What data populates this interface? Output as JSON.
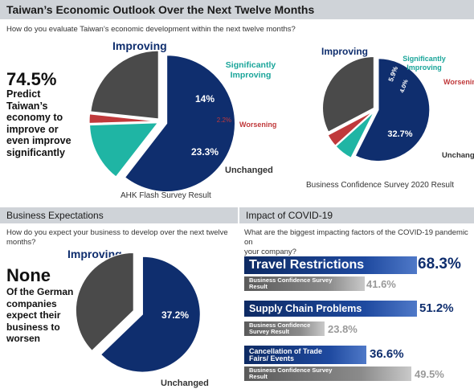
{
  "header": {
    "title": "Taiwan’s Economic Outlook Over the Next Twelve Months"
  },
  "outlook": {
    "question": "How do you evaluate Taiwan’s economic development within the next  twelve months?",
    "stat_value": "74.5%",
    "stat_text_lines": [
      "Predict",
      "Taiwan’s",
      "economy to",
      "improve or",
      "even improve",
      "significantly"
    ],
    "pie1_caption": "AHK Flash Survey Result",
    "pie2_caption": "Business Confidence Survey 2020 Result"
  },
  "expectations": {
    "title": "Business Expectations",
    "question_lines": [
      "How do you expect your business to develop over the next twelve",
      "months?"
    ],
    "stat_value": "None",
    "stat_text_lines": [
      "Of the German",
      "companies",
      "expect their",
      "business to",
      "worsen"
    ]
  },
  "covid": {
    "title": "Impact of COVID-19",
    "question_lines": [
      "What are the biggest impacting factors of the COVID-19 pandemic on",
      "your company?"
    ],
    "items": [
      {
        "label": "Travel Restrictions",
        "value_label": "68.3%",
        "value": 68.3,
        "compare_label": "Business Confidence Survey Result",
        "compare_value_label": "41.6%",
        "compare_value": 41.6
      },
      {
        "label": "Supply Chain Problems",
        "value_label": "51.2%",
        "value": 51.2,
        "compare_label": "Business Confidence Survey Result",
        "compare_value_label": "23.8%",
        "compare_value": 23.8
      },
      {
        "label": "Cancellation of Trade Fairs/ Events",
        "value_label": "36.6%",
        "value": 36.6,
        "compare_label": "Business Confidence Survey Result",
        "compare_value_label": "49.5%",
        "compare_value": 49.5
      }
    ]
  },
  "colors": {
    "navy": "#0f2e6e",
    "teal": "#1fb5a4",
    "red": "#c0393b",
    "grey": "#4a4a4a",
    "header_bg": "#cfd3d8"
  },
  "chart_data": [
    {
      "type": "pie",
      "title": "AHK Flash Survey Result",
      "slices": [
        {
          "label": "Improving",
          "value": 60.5,
          "value_label": "60.5%",
          "color": "#0f2e6e"
        },
        {
          "label": "Significantly Improving",
          "value": 14,
          "value_label": "14%",
          "color": "#1fb5a4"
        },
        {
          "label": "Worsening",
          "value": 2.2,
          "value_label": "2.2%",
          "color": "#c0393b"
        },
        {
          "label": "Unchanged",
          "value": 23.3,
          "value_label": "23.3%",
          "color": "#4a4a4a"
        }
      ]
    },
    {
      "type": "pie",
      "title": "Business Confidence Survey 2020 Result",
      "slices": [
        {
          "label": "Improving",
          "value": 57.4,
          "value_label": "57.4%",
          "color": "#0f2e6e"
        },
        {
          "label": "Significantly Improving",
          "value": 5.9,
          "value_label": "5.9%",
          "color": "#1fb5a4"
        },
        {
          "label": "Worsening",
          "value": 4.0,
          "value_label": "4.0%",
          "color": "#c0393b"
        },
        {
          "label": "Unchanged",
          "value": 32.7,
          "value_label": "32.7%",
          "color": "#4a4a4a"
        }
      ]
    },
    {
      "type": "pie",
      "title": "Business Expectations",
      "slices": [
        {
          "label": "Improving",
          "value": 62.8,
          "value_label": "62.8%",
          "color": "#0f2e6e"
        },
        {
          "label": "Unchanged",
          "value": 37.2,
          "value_label": "37.2%",
          "color": "#4a4a4a"
        }
      ]
    },
    {
      "type": "bar",
      "title": "Impact of COVID-19",
      "categories": [
        "Travel Restrictions",
        "Supply Chain Problems",
        "Cancellation of Trade Fairs/ Events"
      ],
      "series": [
        {
          "name": "",
          "values": [
            68.3,
            51.2,
            36.6
          ]
        },
        {
          "name": "Business Confidence Survey Result",
          "values": [
            41.6,
            23.8,
            49.5
          ]
        }
      ]
    }
  ]
}
